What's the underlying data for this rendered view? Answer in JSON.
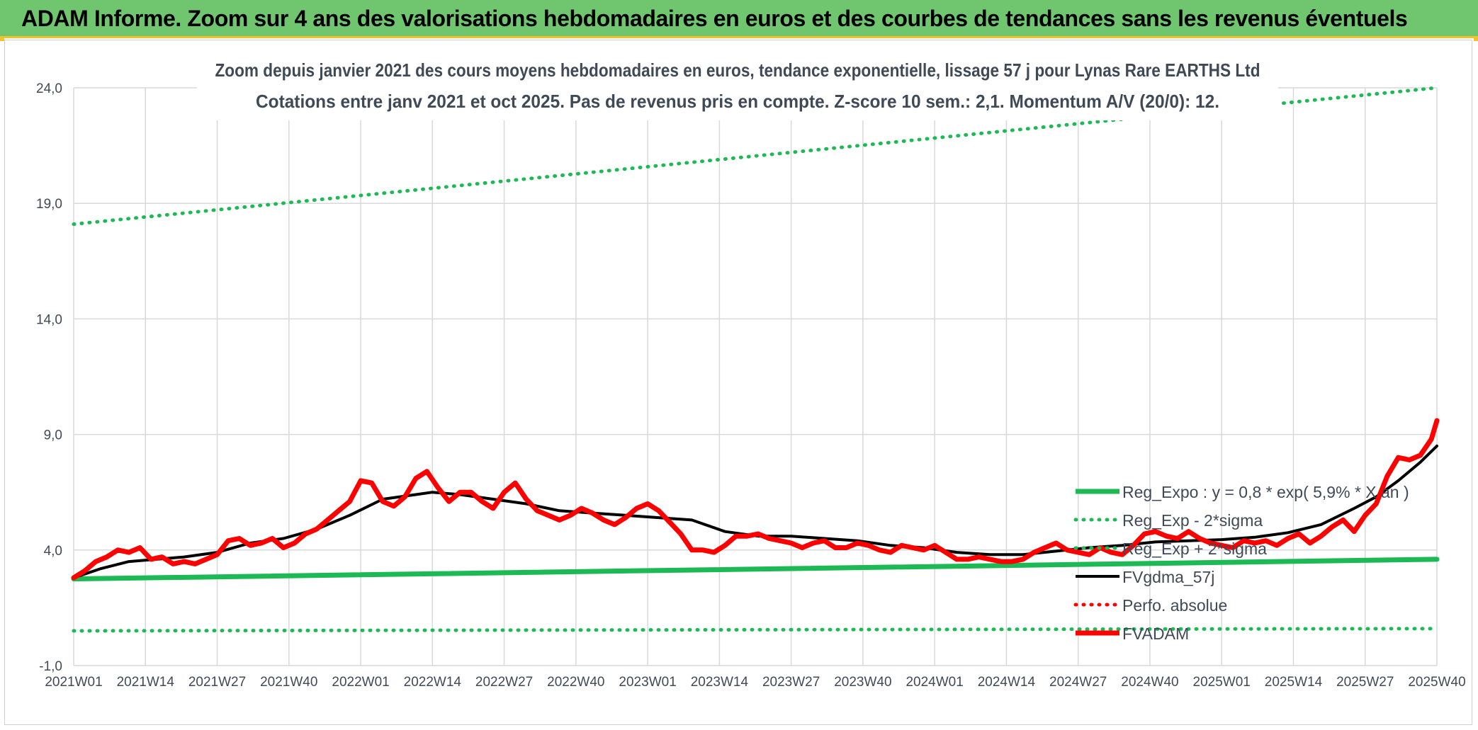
{
  "banner": {
    "title": "ADAM Informe. Zoom sur 4 ans des valorisations hebdomadaires en euros et des courbes de tendances sans les revenus éventuels"
  },
  "colors": {
    "banner_bg": "#70c56f",
    "banner_accent": "#f0c22b",
    "green": "#1db954",
    "red": "#ff0000",
    "black": "#000000",
    "grid": "#d9d9d9",
    "axis_text": "#404a57"
  },
  "chart_data": {
    "type": "line",
    "title_line1": "Zoom depuis janvier 2021 des cours moyens hebdomadaires en euros, tendance exponentielle, lissage 57 j pour Lynas Rare EARTHS Ltd",
    "title_line2": "Cotations entre janv 2021 et oct 2025. Pas de revenus pris en compte. Z-score 10 sem.: 2,1. Momentum A/V (20/0): 12.",
    "ylim": [
      -1.0,
      24.0
    ],
    "yticks": [
      -1.0,
      4.0,
      9.0,
      14.0,
      19.0,
      24.0
    ],
    "ytick_labels": [
      "-1,0",
      "4,0",
      "9,0",
      "14,0",
      "19,0",
      "24,0"
    ],
    "x_range_weeks": [
      0,
      247
    ],
    "xticks": [
      0,
      13,
      26,
      39,
      52,
      65,
      78,
      91,
      104,
      117,
      130,
      143,
      156,
      169,
      182,
      195,
      208,
      221,
      234,
      247
    ],
    "xtick_labels": [
      "2021W01",
      "2021W14",
      "2021W27",
      "2021W40",
      "2022W01",
      "2022W14",
      "2022W27",
      "2022W40",
      "2023W01",
      "2023W14",
      "2023W27",
      "2023W40",
      "2024W01",
      "2024W14",
      "2024W27",
      "2024W40",
      "2025W01",
      "2025W14",
      "2025W27",
      "2025W40"
    ],
    "legend": {
      "position": "lower-right",
      "entries": [
        "Reg_Expo : y = 0,8 * exp( 5,9% *  X  an )",
        "Reg_Exp - 2*sigma",
        "Reg_Exp + 2*sigma",
        "FVgdma_57j",
        "Perfo. absolue",
        "FVADAM"
      ]
    },
    "series": [
      {
        "name": "Reg_Expo : y = 0,8 * exp( 5,9% *  X  an )",
        "style": "solid-green-thick",
        "x": [
          0,
          247
        ],
        "values": [
          2.75,
          3.6
        ]
      },
      {
        "name": "Reg_Exp - 2*sigma",
        "style": "dotted-green",
        "x": [
          0,
          247
        ],
        "values": [
          0.5,
          0.6
        ]
      },
      {
        "name": "Reg_Exp + 2*sigma",
        "style": "dotted-green",
        "x": [
          0,
          247
        ],
        "values": [
          18.1,
          24.0
        ]
      },
      {
        "name": "FVgdma_57j",
        "style": "solid-black",
        "x": [
          0,
          5,
          10,
          15,
          20,
          26,
          32,
          38,
          44,
          50,
          56,
          62,
          65,
          70,
          76,
          82,
          88,
          94,
          100,
          106,
          112,
          118,
          124,
          130,
          136,
          142,
          148,
          154,
          160,
          166,
          172,
          178,
          184,
          190,
          196,
          202,
          208,
          214,
          220,
          226,
          232,
          236,
          240,
          244,
          247
        ],
        "values": [
          2.8,
          3.2,
          3.5,
          3.6,
          3.7,
          3.9,
          4.3,
          4.5,
          4.9,
          5.5,
          6.2,
          6.4,
          6.5,
          6.4,
          6.2,
          6.0,
          5.7,
          5.6,
          5.5,
          5.4,
          5.3,
          4.8,
          4.6,
          4.6,
          4.5,
          4.4,
          4.2,
          4.1,
          3.9,
          3.8,
          3.8,
          3.95,
          4.1,
          4.2,
          4.35,
          4.4,
          4.45,
          4.55,
          4.75,
          5.1,
          5.8,
          6.3,
          7.0,
          7.8,
          8.5
        ]
      },
      {
        "name": "Perfo. absolue",
        "style": "dotted-red",
        "x": [],
        "values": []
      },
      {
        "name": "FVADAM",
        "style": "solid-red-thick",
        "x": [
          0,
          2,
          4,
          6,
          8,
          10,
          12,
          14,
          16,
          18,
          20,
          22,
          24,
          26,
          28,
          30,
          32,
          34,
          36,
          38,
          40,
          42,
          44,
          46,
          48,
          50,
          52,
          54,
          56,
          58,
          60,
          62,
          64,
          66,
          68,
          70,
          72,
          74,
          76,
          78,
          80,
          82,
          84,
          86,
          88,
          90,
          92,
          94,
          96,
          98,
          100,
          102,
          104,
          106,
          108,
          110,
          112,
          114,
          116,
          118,
          120,
          122,
          124,
          126,
          128,
          130,
          132,
          134,
          136,
          138,
          140,
          142,
          144,
          146,
          148,
          150,
          152,
          154,
          156,
          158,
          160,
          162,
          164,
          166,
          168,
          170,
          172,
          174,
          176,
          178,
          180,
          182,
          184,
          186,
          188,
          190,
          192,
          194,
          196,
          198,
          200,
          202,
          204,
          206,
          208,
          210,
          212,
          214,
          216,
          218,
          220,
          222,
          224,
          226,
          228,
          230,
          232,
          234,
          236,
          238,
          240,
          242,
          244,
          246,
          247
        ],
        "values": [
          2.8,
          3.1,
          3.5,
          3.7,
          4.0,
          3.9,
          4.1,
          3.6,
          3.7,
          3.4,
          3.5,
          3.4,
          3.6,
          3.8,
          4.4,
          4.5,
          4.2,
          4.3,
          4.5,
          4.1,
          4.3,
          4.7,
          4.9,
          5.3,
          5.7,
          6.1,
          7.0,
          6.9,
          6.1,
          5.9,
          6.3,
          7.1,
          7.4,
          6.7,
          6.1,
          6.5,
          6.5,
          6.1,
          5.8,
          6.5,
          6.9,
          6.2,
          5.7,
          5.5,
          5.3,
          5.5,
          5.8,
          5.6,
          5.3,
          5.1,
          5.4,
          5.8,
          6.0,
          5.7,
          5.2,
          4.7,
          4.0,
          4.0,
          3.9,
          4.2,
          4.6,
          4.6,
          4.7,
          4.5,
          4.4,
          4.3,
          4.1,
          4.3,
          4.4,
          4.1,
          4.1,
          4.3,
          4.2,
          4.0,
          3.9,
          4.2,
          4.1,
          4.0,
          4.2,
          3.9,
          3.6,
          3.6,
          3.7,
          3.6,
          3.5,
          3.5,
          3.6,
          3.9,
          4.1,
          4.3,
          4.0,
          3.9,
          3.8,
          4.1,
          3.9,
          3.8,
          4.2,
          4.7,
          4.8,
          4.6,
          4.5,
          4.8,
          4.5,
          4.3,
          4.2,
          4.1,
          4.4,
          4.3,
          4.4,
          4.2,
          4.5,
          4.7,
          4.3,
          4.6,
          5.0,
          5.3,
          4.8,
          5.5,
          6.0,
          7.2,
          8.0,
          7.9,
          8.1,
          8.8,
          9.6
        ]
      }
    ]
  }
}
